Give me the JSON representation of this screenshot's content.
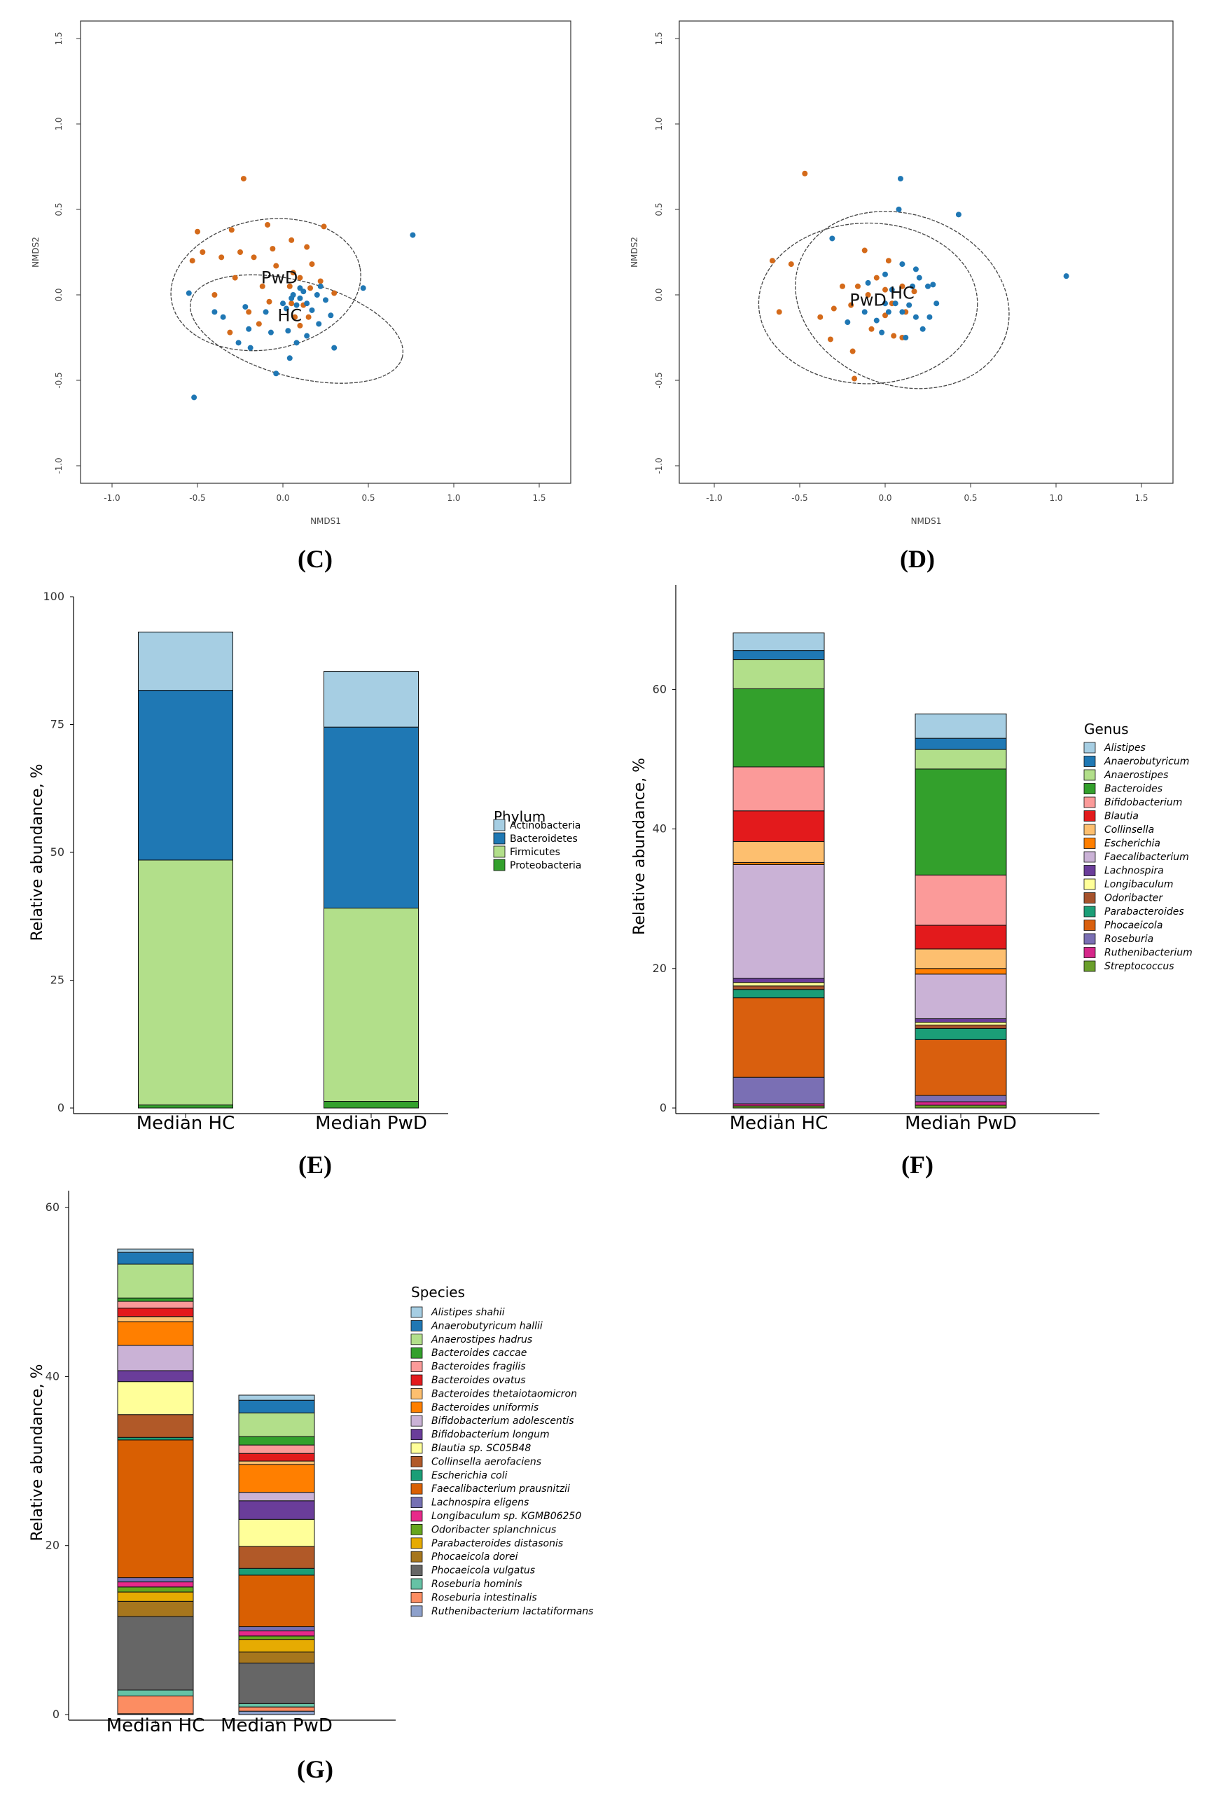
{
  "chart_data": [
    {
      "id": "C",
      "label": "(C)",
      "type": "scatter",
      "xlabel": "NMDS1",
      "ylabel": "NMDS2",
      "xticks": [
        "-1.0",
        "-0.5",
        "0.0",
        "0.5",
        "1.0",
        "1.5"
      ],
      "yticks": [
        "-1.0",
        "-0.5",
        "0.0",
        "0.5",
        "1.0",
        "1.5"
      ],
      "xlim": [
        -1.2,
        1.7
      ],
      "ylim": [
        -1.1,
        1.6
      ],
      "colors": {
        "PwD": "#d46a1a",
        "HC": "#1f77b4"
      },
      "group_labels": [
        {
          "text": "PwD",
          "x": -0.02,
          "y": 0.1
        },
        {
          "text": "HC",
          "x": 0.04,
          "y": -0.12
        }
      ],
      "ellipses": [
        {
          "cx": -0.1,
          "cy": 0.06,
          "rx": 0.56,
          "ry": 0.38,
          "angle": -10
        },
        {
          "cx": 0.08,
          "cy": -0.2,
          "rx": 0.64,
          "ry": 0.28,
          "angle": 15
        }
      ],
      "series": [
        {
          "name": "PwD",
          "points": [
            [
              -0.23,
              0.68
            ],
            [
              -0.5,
              0.37
            ],
            [
              -0.3,
              0.38
            ],
            [
              -0.47,
              0.25
            ],
            [
              -0.53,
              0.2
            ],
            [
              -0.09,
              0.41
            ],
            [
              0.24,
              0.4
            ],
            [
              -0.06,
              0.27
            ],
            [
              -0.25,
              0.25
            ],
            [
              -0.36,
              0.22
            ],
            [
              -0.17,
              0.22
            ],
            [
              0.05,
              0.32
            ],
            [
              0.14,
              0.28
            ],
            [
              -0.4,
              0.0
            ],
            [
              -0.28,
              0.1
            ],
            [
              -0.12,
              0.05
            ],
            [
              0.17,
              0.18
            ],
            [
              0.22,
              0.08
            ],
            [
              -0.08,
              -0.04
            ],
            [
              -0.2,
              -0.1
            ],
            [
              0.1,
              0.1
            ],
            [
              0.04,
              0.05
            ],
            [
              -0.04,
              0.17
            ],
            [
              0.12,
              -0.06
            ],
            [
              -0.31,
              -0.22
            ],
            [
              0.3,
              0.01
            ],
            [
              0.05,
              -0.05
            ],
            [
              0.06,
              0.13
            ],
            [
              0.15,
              -0.13
            ],
            [
              -0.14,
              -0.17
            ],
            [
              0.1,
              -0.18
            ],
            [
              0.16,
              0.04
            ],
            [
              0.07,
              -0.13
            ]
          ]
        },
        {
          "name": "HC",
          "points": [
            [
              0.76,
              0.35
            ],
            [
              -0.52,
              -0.6
            ],
            [
              -0.4,
              -0.1
            ],
            [
              -0.2,
              -0.2
            ],
            [
              -0.1,
              -0.1
            ],
            [
              0.0,
              -0.05
            ],
            [
              0.05,
              -0.02
            ],
            [
              0.1,
              -0.02
            ],
            [
              0.12,
              0.02
            ],
            [
              0.14,
              -0.05
            ],
            [
              0.2,
              0.0
            ],
            [
              0.25,
              -0.03
            ],
            [
              0.28,
              -0.12
            ],
            [
              0.22,
              0.05
            ],
            [
              0.47,
              0.04
            ],
            [
              0.3,
              -0.31
            ],
            [
              0.04,
              -0.37
            ],
            [
              -0.04,
              -0.46
            ],
            [
              -0.19,
              -0.31
            ],
            [
              -0.26,
              -0.28
            ],
            [
              -0.35,
              -0.13
            ],
            [
              -0.22,
              -0.07
            ],
            [
              0.08,
              -0.06
            ],
            [
              0.06,
              0.0
            ],
            [
              0.1,
              0.04
            ],
            [
              0.17,
              -0.09
            ],
            [
              0.21,
              -0.17
            ],
            [
              0.03,
              -0.21
            ],
            [
              -0.07,
              -0.22
            ],
            [
              0.14,
              -0.24
            ],
            [
              -0.55,
              0.01
            ],
            [
              0.08,
              -0.28
            ],
            [
              0.02,
              -0.08
            ]
          ]
        }
      ]
    },
    {
      "id": "D",
      "label": "(D)",
      "type": "scatter",
      "xlabel": "NMDS1",
      "ylabel": "NMDS2",
      "xticks": [
        "-1.0",
        "-0.5",
        "0.0",
        "0.5",
        "1.0",
        "1.5"
      ],
      "yticks": [
        "-1.0",
        "-0.5",
        "0.0",
        "0.5",
        "1.0",
        "1.5"
      ],
      "xlim": [
        -1.2,
        1.7
      ],
      "ylim": [
        -1.1,
        1.6
      ],
      "colors": {
        "PwD": "#d46a1a",
        "HC": "#1f77b4"
      },
      "group_labels": [
        {
          "text": "PwD",
          "x": -0.1,
          "y": -0.03
        },
        {
          "text": "HC",
          "x": 0.1,
          "y": 0.01
        }
      ],
      "ellipses": [
        {
          "cx": -0.1,
          "cy": -0.05,
          "rx": 0.64,
          "ry": 0.47,
          "angle": 0
        },
        {
          "cx": 0.1,
          "cy": -0.03,
          "rx": 0.64,
          "ry": 0.5,
          "angle": 20
        }
      ],
      "series": [
        {
          "name": "PwD",
          "points": [
            [
              -0.47,
              0.71
            ],
            [
              -0.66,
              0.2
            ],
            [
              -0.55,
              0.18
            ],
            [
              -0.62,
              -0.1
            ],
            [
              -0.38,
              -0.13
            ],
            [
              -0.32,
              -0.26
            ],
            [
              -0.2,
              -0.06
            ],
            [
              -0.16,
              0.05
            ],
            [
              -0.12,
              0.26
            ],
            [
              -0.05,
              0.1
            ],
            [
              0.0,
              0.03
            ],
            [
              0.04,
              -0.05
            ],
            [
              0.1,
              0.05
            ],
            [
              -0.08,
              -0.2
            ],
            [
              -0.19,
              -0.33
            ],
            [
              -0.18,
              -0.49
            ],
            [
              0.05,
              -0.24
            ],
            [
              0.1,
              -0.25
            ],
            [
              -0.25,
              0.05
            ],
            [
              0.02,
              0.2
            ],
            [
              0.12,
              -0.1
            ],
            [
              -0.1,
              0.0
            ],
            [
              0.0,
              -0.12
            ],
            [
              -0.3,
              -0.08
            ],
            [
              0.17,
              0.02
            ]
          ]
        },
        {
          "name": "HC",
          "points": [
            [
              1.06,
              0.11
            ],
            [
              0.43,
              0.47
            ],
            [
              0.09,
              0.68
            ],
            [
              0.08,
              0.5
            ],
            [
              -0.31,
              0.33
            ],
            [
              0.0,
              0.12
            ],
            [
              0.1,
              0.18
            ],
            [
              0.18,
              0.15
            ],
            [
              0.25,
              0.05
            ],
            [
              0.3,
              -0.05
            ],
            [
              0.22,
              -0.2
            ],
            [
              0.18,
              -0.13
            ],
            [
              0.1,
              -0.1
            ],
            [
              0.06,
              -0.05
            ],
            [
              0.02,
              -0.1
            ],
            [
              0.0,
              -0.05
            ],
            [
              -0.05,
              -0.15
            ],
            [
              -0.12,
              -0.1
            ],
            [
              0.14,
              -0.06
            ],
            [
              0.16,
              0.05
            ],
            [
              0.2,
              0.1
            ],
            [
              -0.22,
              -0.16
            ],
            [
              -0.02,
              -0.22
            ],
            [
              0.12,
              -0.25
            ],
            [
              0.26,
              -0.13
            ],
            [
              0.28,
              0.06
            ],
            [
              0.04,
              0.03
            ],
            [
              -0.1,
              0.07
            ]
          ]
        }
      ]
    },
    {
      "id": "E",
      "label": "(E)",
      "type": "bar",
      "stacked": true,
      "ylabel": "Relative abundance, %",
      "ylim": [
        0,
        100
      ],
      "yticks": [
        0,
        25,
        50,
        75,
        100
      ],
      "categories": [
        "Median HC",
        "Median PwD"
      ],
      "legend_title": "Phylum",
      "legend_italic": false,
      "series": [
        {
          "name": "Proteobacteria",
          "color": "#33a02c",
          "values": [
            0.6,
            1.3
          ]
        },
        {
          "name": "Firmicutes",
          "color": "#b2df8a",
          "values": [
            47.9,
            37.8
          ]
        },
        {
          "name": "Bacteroidetes",
          "color": "#1f78b4",
          "values": [
            33.2,
            35.4
          ]
        },
        {
          "name": "Actinobacteria",
          "color": "#a6cee3",
          "values": [
            11.4,
            10.9
          ]
        }
      ]
    },
    {
      "id": "F",
      "label": "(F)",
      "type": "bar",
      "stacked": true,
      "ylabel": "Relative abundance, %",
      "ylim": [
        0,
        75
      ],
      "yticks": [
        0,
        20,
        40,
        60
      ],
      "categories": [
        "Median HC",
        "Median PwD"
      ],
      "legend_title": "Genus",
      "legend_italic": true,
      "series": [
        {
          "name": "Streptococcus",
          "color": "#6a9f2b",
          "values": [
            0.3,
            0.4
          ]
        },
        {
          "name": "Ruthenibacterium",
          "color": "#d6278a",
          "values": [
            0.3,
            0.5
          ]
        },
        {
          "name": "Roseburia",
          "color": "#7a6fb4",
          "values": [
            3.8,
            0.9
          ]
        },
        {
          "name": "Phocaeicola",
          "color": "#d95f0e",
          "values": [
            11.4,
            8.0
          ]
        },
        {
          "name": "Parabacteroides",
          "color": "#1b9e77",
          "values": [
            1.2,
            1.6
          ]
        },
        {
          "name": "Odoribacter",
          "color": "#a6522c",
          "values": [
            0.5,
            0.5
          ]
        },
        {
          "name": "Longibaculum",
          "color": "#ffff99",
          "values": [
            0.5,
            0.4
          ]
        },
        {
          "name": "Lachnospira",
          "color": "#6a3d9a",
          "values": [
            0.6,
            0.5
          ]
        },
        {
          "name": "Faecalibacterium",
          "color": "#cab2d6",
          "values": [
            16.3,
            6.4
          ]
        },
        {
          "name": "Escherichia",
          "color": "#ff7f00",
          "values": [
            0.3,
            0.8
          ]
        },
        {
          "name": "Collinsella",
          "color": "#fdbf6f",
          "values": [
            3.0,
            2.8
          ]
        },
        {
          "name": "Blautia",
          "color": "#e31a1c",
          "values": [
            4.4,
            3.4
          ]
        },
        {
          "name": "Bifidobacterium",
          "color": "#fb9a99",
          "values": [
            6.3,
            7.2
          ]
        },
        {
          "name": "Bacteroides",
          "color": "#33a02c",
          "values": [
            11.2,
            15.2
          ]
        },
        {
          "name": "Anaerostipes",
          "color": "#b2df8a",
          "values": [
            4.2,
            2.8
          ]
        },
        {
          "name": "Anaerobutyricum",
          "color": "#1f78b4",
          "values": [
            1.3,
            1.6
          ]
        },
        {
          "name": "Alistipes",
          "color": "#a6cee3",
          "values": [
            2.5,
            3.5
          ]
        }
      ]
    },
    {
      "id": "G",
      "label": "(G)",
      "type": "bar",
      "stacked": true,
      "ylabel": "Relative abundance, %",
      "ylim": [
        0,
        62
      ],
      "yticks": [
        0,
        20,
        40,
        60
      ],
      "categories": [
        "Median HC",
        "Median PwD"
      ],
      "legend_title": "Species",
      "legend_italic": true,
      "series": [
        {
          "name": "Ruthenibacterium lactatiformans",
          "color": "#8da0cb",
          "values": [
            0.1,
            0.4
          ]
        },
        {
          "name": "Roseburia intestinalis",
          "color": "#fc8d62",
          "values": [
            2.1,
            0.5
          ]
        },
        {
          "name": "Roseburia hominis",
          "color": "#66c2a5",
          "values": [
            0.7,
            0.4
          ]
        },
        {
          "name": "Phocaeicola vulgatus",
          "color": "#666666",
          "values": [
            8.7,
            4.8
          ]
        },
        {
          "name": "Phocaeicola dorei",
          "color": "#a6761d",
          "values": [
            1.8,
            1.3
          ]
        },
        {
          "name": "Parabacteroides distasonis",
          "color": "#e6ab02",
          "values": [
            1.1,
            1.5
          ]
        },
        {
          "name": "Odoribacter splanchnicus",
          "color": "#66a61e",
          "values": [
            0.6,
            0.4
          ]
        },
        {
          "name": "Longibaculum sp. KGMB06250",
          "color": "#e7298a",
          "values": [
            0.6,
            0.6
          ]
        },
        {
          "name": "Lachnospira eligens",
          "color": "#7570b3",
          "values": [
            0.5,
            0.5
          ]
        },
        {
          "name": "Faecalibacterium prausnitzii",
          "color": "#d95f02",
          "values": [
            16.3,
            6.1
          ]
        },
        {
          "name": "Escherichia coli",
          "color": "#1b9e77",
          "values": [
            0.3,
            0.8
          ]
        },
        {
          "name": "Collinsella aerofaciens",
          "color": "#b15928",
          "values": [
            2.7,
            2.6
          ]
        },
        {
          "name": "Blautia sp. SC05B48",
          "color": "#ffff99",
          "values": [
            3.9,
            3.2
          ]
        },
        {
          "name": "Bifidobacterium longum",
          "color": "#6a3d9a",
          "values": [
            1.3,
            2.2
          ]
        },
        {
          "name": "Bifidobacterium adolescentis",
          "color": "#cab2d6",
          "values": [
            3.0,
            1.0
          ]
        },
        {
          "name": "Bacteroides uniformis",
          "color": "#ff7f00",
          "values": [
            2.8,
            3.3
          ]
        },
        {
          "name": "Bacteroides thetaiotaomicron",
          "color": "#fdbf6f",
          "values": [
            0.6,
            0.4
          ]
        },
        {
          "name": "Bacteroides ovatus",
          "color": "#e31a1c",
          "values": [
            1.0,
            0.9
          ]
        },
        {
          "name": "Bacteroides fragilis",
          "color": "#fb9a99",
          "values": [
            0.8,
            1.0
          ]
        },
        {
          "name": "Bacteroides caccae",
          "color": "#33a02c",
          "values": [
            0.4,
            1.0
          ]
        },
        {
          "name": "Anaerostipes hadrus",
          "color": "#b2df8a",
          "values": [
            4.0,
            2.8
          ]
        },
        {
          "name": "Anaerobutyricum hallii",
          "color": "#1f78b4",
          "values": [
            1.4,
            1.5
          ]
        },
        {
          "name": "Alistipes shahii",
          "color": "#a6cee3",
          "values": [
            0.4,
            0.6
          ]
        }
      ]
    }
  ]
}
